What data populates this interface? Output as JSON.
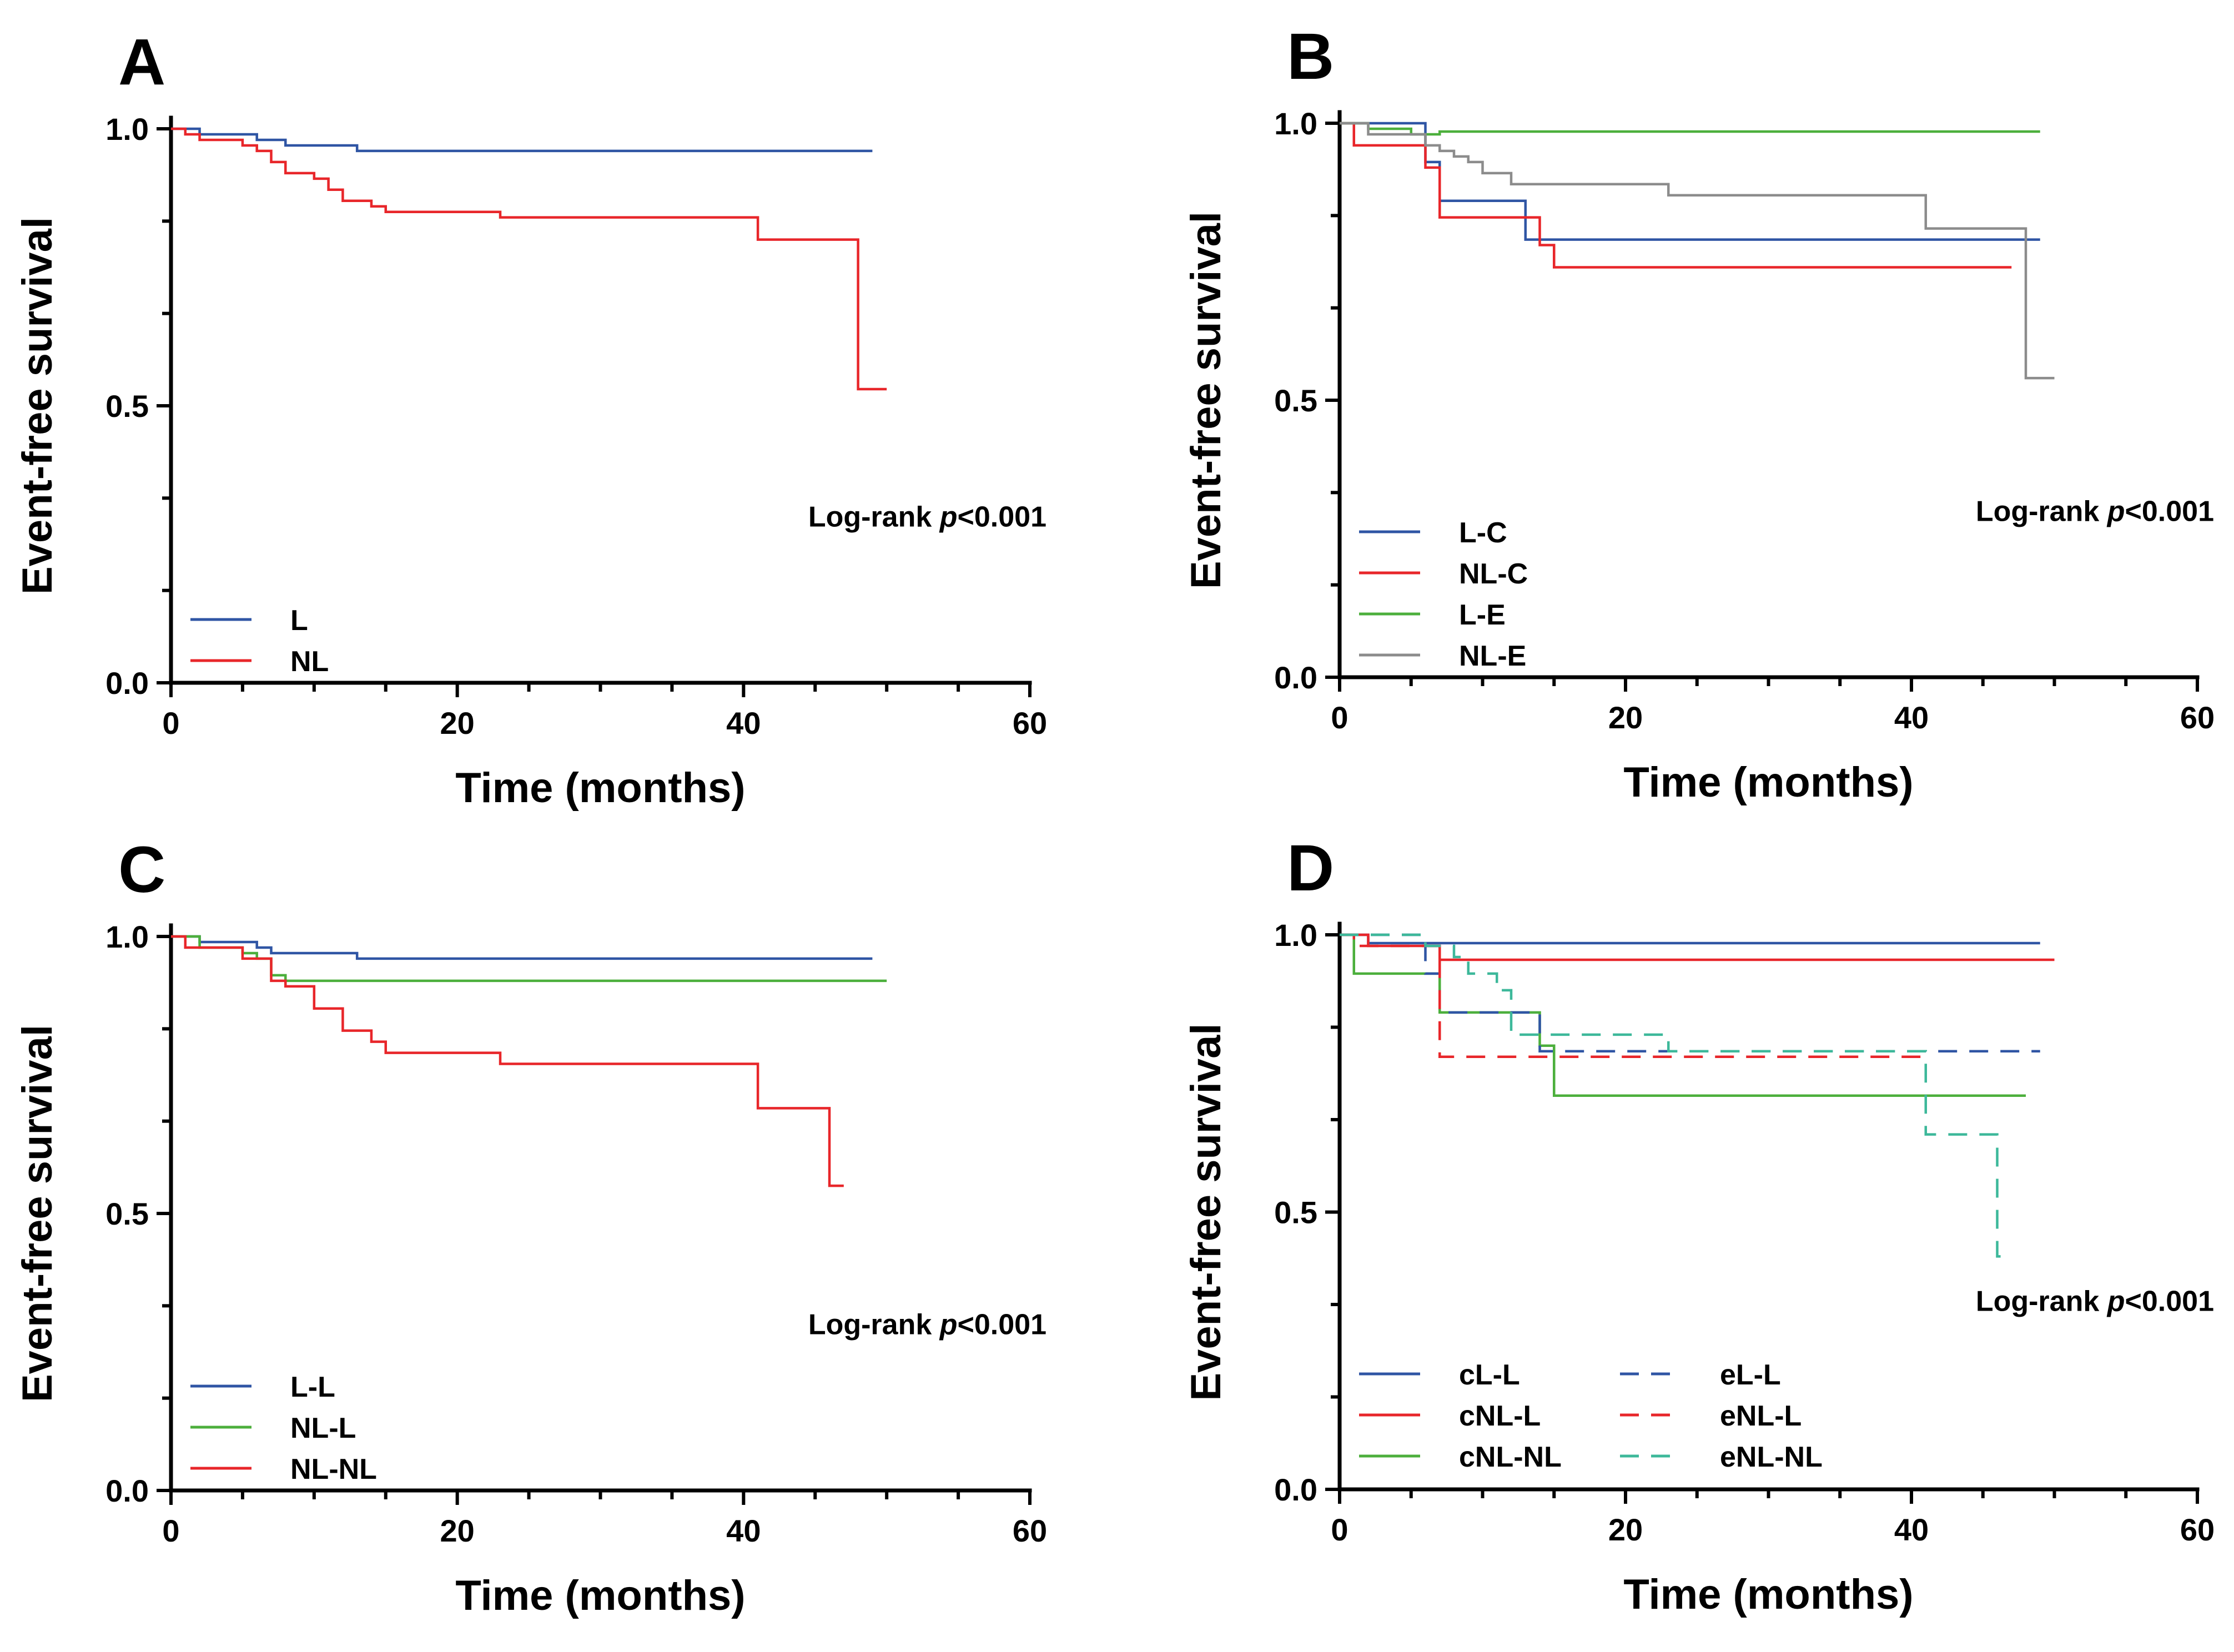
{
  "figure": {
    "colors": {
      "blue": "#2F55A4",
      "red": "#E8262A",
      "green": "#4CAF3C",
      "gray": "#8C8C8C",
      "teal": "#3DB89A"
    }
  },
  "chart_data": [
    {
      "panel": "A",
      "type": "line",
      "step": true,
      "xlabel": "Time (months)",
      "ylabel": "Event-free survival",
      "xlim": [
        0,
        60
      ],
      "ylim": [
        0,
        1
      ],
      "xticks": [
        "0",
        "20",
        "40",
        "60"
      ],
      "yticks": [
        "0.0",
        "0.5",
        "1.0"
      ],
      "annotation": {
        "prefix": "Log-rank ",
        "italic": "p",
        "suffix": "<0.001",
        "position": "right-middle"
      },
      "legend_position": "bottom-left",
      "series": [
        {
          "name": "L",
          "color": "#2F55A4",
          "dash": false,
          "points": [
            [
              0,
              1.0
            ],
            [
              2,
              0.99
            ],
            [
              6,
              0.98
            ],
            [
              8,
              0.97
            ],
            [
              13,
              0.96
            ],
            [
              49,
              0.96
            ]
          ]
        },
        {
          "name": "NL",
          "color": "#E8262A",
          "dash": false,
          "points": [
            [
              0,
              1.0
            ],
            [
              1,
              0.99
            ],
            [
              2,
              0.98
            ],
            [
              5,
              0.97
            ],
            [
              6,
              0.96
            ],
            [
              7,
              0.94
            ],
            [
              8,
              0.92
            ],
            [
              10,
              0.91
            ],
            [
              11,
              0.89
            ],
            [
              12,
              0.87
            ],
            [
              14,
              0.86
            ],
            [
              15,
              0.85
            ],
            [
              23,
              0.84
            ],
            [
              41,
              0.8
            ],
            [
              48,
              0.53
            ],
            [
              50,
              0.53
            ]
          ]
        }
      ]
    },
    {
      "panel": "B",
      "type": "line",
      "step": true,
      "xlabel": "Time (months)",
      "ylabel": "Event-free survival",
      "xlim": [
        0,
        60
      ],
      "ylim": [
        0,
        1
      ],
      "xticks": [
        "0",
        "20",
        "40",
        "60"
      ],
      "yticks": [
        "0.0",
        "0.5",
        "1.0"
      ],
      "annotation": {
        "prefix": "Log-rank ",
        "italic": "p",
        "suffix": "<0.001",
        "position": "right-middle"
      },
      "legend_position": "bottom-left",
      "series": [
        {
          "name": "L-C",
          "color": "#2F55A4",
          "dash": false,
          "points": [
            [
              0,
              1.0
            ],
            [
              6,
              0.93
            ],
            [
              7,
              0.86
            ],
            [
              13,
              0.79
            ],
            [
              49,
              0.79
            ]
          ]
        },
        {
          "name": "NL-C",
          "color": "#E8262A",
          "dash": false,
          "points": [
            [
              0,
              1.0
            ],
            [
              1,
              0.96
            ],
            [
              6,
              0.92
            ],
            [
              7,
              0.83
            ],
            [
              14,
              0.78
            ],
            [
              15,
              0.74
            ],
            [
              47,
              0.74
            ]
          ]
        },
        {
          "name": "L-E",
          "color": "#4CAF3C",
          "dash": false,
          "points": [
            [
              0,
              1.0
            ],
            [
              2,
              0.99
            ],
            [
              5,
              0.98
            ],
            [
              7,
              0.985
            ],
            [
              49,
              0.985
            ]
          ]
        },
        {
          "name": "NL-E",
          "color": "#8C8C8C",
          "dash": false,
          "points": [
            [
              0,
              1.0
            ],
            [
              2,
              0.98
            ],
            [
              6,
              0.96
            ],
            [
              7,
              0.95
            ],
            [
              8,
              0.94
            ],
            [
              9,
              0.93
            ],
            [
              10,
              0.91
            ],
            [
              12,
              0.89
            ],
            [
              19,
              0.89
            ],
            [
              23,
              0.87
            ],
            [
              40,
              0.87
            ],
            [
              41,
              0.81
            ],
            [
              47,
              0.81
            ],
            [
              48,
              0.54
            ],
            [
              50,
              0.54
            ]
          ]
        }
      ]
    },
    {
      "panel": "C",
      "type": "line",
      "step": true,
      "xlabel": "Time (months)",
      "ylabel": "Event-free survival",
      "xlim": [
        0,
        60
      ],
      "ylim": [
        0,
        1
      ],
      "xticks": [
        "0",
        "20",
        "40",
        "60"
      ],
      "yticks": [
        "0.0",
        "0.5",
        "1.0"
      ],
      "annotation": {
        "prefix": "Log-rank ",
        "italic": "p",
        "suffix": "<0.001",
        "position": "right-middle"
      },
      "legend_position": "bottom-left",
      "series": [
        {
          "name": "L-L",
          "color": "#2F55A4",
          "dash": false,
          "points": [
            [
              0,
              1.0
            ],
            [
              2,
              0.99
            ],
            [
              6,
              0.98
            ],
            [
              7,
              0.97
            ],
            [
              13,
              0.96
            ],
            [
              49,
              0.96
            ]
          ]
        },
        {
          "name": "NL-L",
          "color": "#4CAF3C",
          "dash": false,
          "points": [
            [
              0,
              1.0
            ],
            [
              2,
              0.98
            ],
            [
              5,
              0.97
            ],
            [
              6,
              0.96
            ],
            [
              7,
              0.93
            ],
            [
              8,
              0.92
            ],
            [
              50,
              0.92
            ]
          ]
        },
        {
          "name": "NL-NL",
          "color": "#E8262A",
          "dash": false,
          "points": [
            [
              0,
              1.0
            ],
            [
              1,
              0.98
            ],
            [
              5,
              0.96
            ],
            [
              7,
              0.92
            ],
            [
              8,
              0.91
            ],
            [
              10,
              0.87
            ],
            [
              12,
              0.83
            ],
            [
              14,
              0.81
            ],
            [
              15,
              0.79
            ],
            [
              23,
              0.77
            ],
            [
              41,
              0.69
            ],
            [
              46,
              0.55
            ],
            [
              47,
              0.55
            ]
          ]
        }
      ]
    },
    {
      "panel": "D",
      "type": "line",
      "step": true,
      "xlabel": "Time (months)",
      "ylabel": "Event-free survival",
      "xlim": [
        0,
        60
      ],
      "ylim": [
        0,
        1
      ],
      "xticks": [
        "0",
        "20",
        "40",
        "60"
      ],
      "yticks": [
        "0.0",
        "0.5",
        "1.0"
      ],
      "annotation": {
        "prefix": "Log-rank ",
        "italic": "p",
        "suffix": "<0.001",
        "position": "right-middle"
      },
      "legend_position": "bottom-left",
      "legend_columns": 2,
      "series": [
        {
          "name": "cL-L",
          "color": "#2F55A4",
          "dash": false,
          "points": [
            [
              0,
              1.0
            ],
            [
              2,
              0.985
            ],
            [
              49,
              0.985
            ]
          ]
        },
        {
          "name": "cNL-L",
          "color": "#E8262A",
          "dash": false,
          "points": [
            [
              0,
              1.0
            ],
            [
              2,
              0.98
            ],
            [
              7,
              0.955
            ],
            [
              50,
              0.955
            ]
          ]
        },
        {
          "name": "cNL-NL",
          "color": "#4CAF3C",
          "dash": false,
          "points": [
            [
              0,
              1.0
            ],
            [
              1,
              0.93
            ],
            [
              7,
              0.86
            ],
            [
              14,
              0.8
            ],
            [
              15,
              0.71
            ],
            [
              48,
              0.71
            ]
          ]
        },
        {
          "name": "eL-L",
          "color": "#2F55A4",
          "dash": true,
          "points": [
            [
              0,
              1.0
            ],
            [
              6,
              0.93
            ],
            [
              7,
              0.86
            ],
            [
              14,
              0.79
            ],
            [
              49,
              0.79
            ]
          ]
        },
        {
          "name": "eNL-L",
          "color": "#E8262A",
          "dash": true,
          "points": [
            [
              0,
              1.0
            ],
            [
              1,
              0.98
            ],
            [
              7,
              0.78
            ],
            [
              41,
              0.78
            ]
          ]
        },
        {
          "name": "eNL-NL",
          "color": "#3DB89A",
          "dash": true,
          "points": [
            [
              0,
              1.0
            ],
            [
              6,
              0.98
            ],
            [
              8,
              0.96
            ],
            [
              9,
              0.93
            ],
            [
              11,
              0.9
            ],
            [
              12,
              0.82
            ],
            [
              19,
              0.82
            ],
            [
              23,
              0.79
            ],
            [
              41,
              0.64
            ],
            [
              45,
              0.64
            ],
            [
              46,
              0.42
            ],
            [
              47,
              0.42
            ]
          ]
        }
      ]
    }
  ]
}
